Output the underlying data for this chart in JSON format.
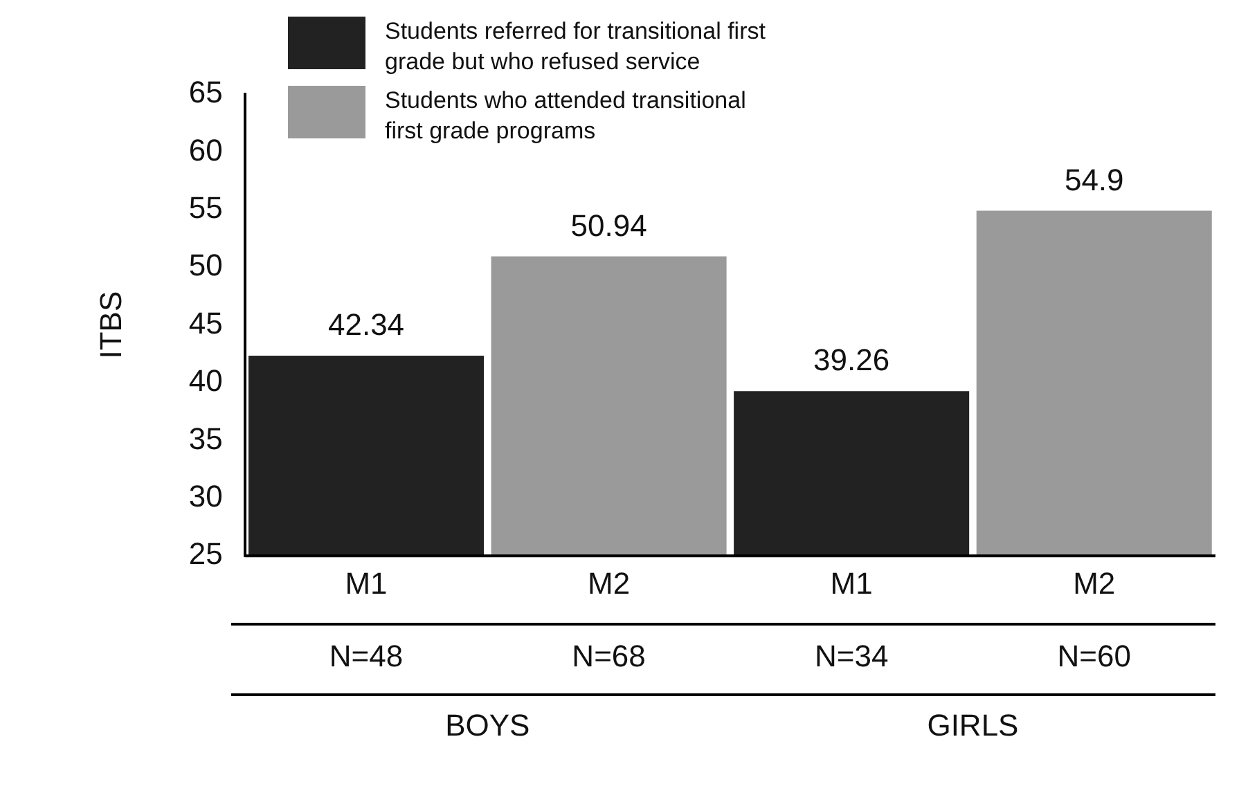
{
  "chart_data": {
    "type": "bar",
    "ylabel": "ITBS",
    "categories": [
      "M1",
      "M2",
      "M1",
      "M2"
    ],
    "series": [
      {
        "name": "Students referred for transitional first grade but who refused service",
        "color": "#222222",
        "values": [
          42.34,
          null,
          39.26,
          null
        ]
      },
      {
        "name": "Students who attended transitional first grade programs",
        "color": "#9a9a9a",
        "values": [
          null,
          50.94,
          null,
          54.9
        ]
      }
    ],
    "ylim": [
      25,
      65
    ],
    "yticks": [
      25,
      30,
      35,
      40,
      45,
      50,
      55,
      60,
      65
    ],
    "grid": false,
    "legend": "top",
    "data_labels": true,
    "annotations": [
      "N=48",
      "N=68",
      "N=34",
      "N=60",
      "BOYS",
      "GIRLS"
    ]
  }
}
